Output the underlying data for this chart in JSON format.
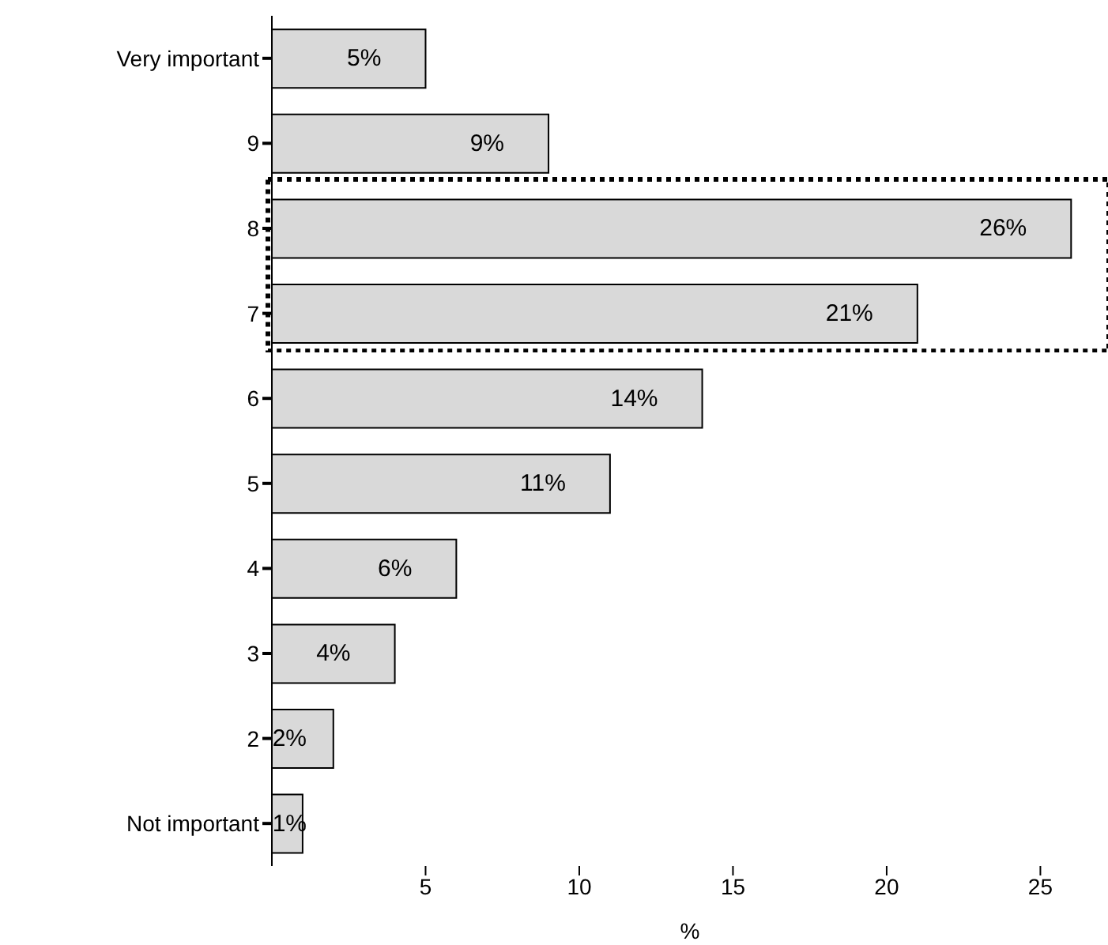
{
  "chart_data": {
    "type": "bar",
    "orientation": "horizontal",
    "xlabel": "%",
    "categories": [
      "Very important",
      "9",
      "8",
      "7",
      "6",
      "5",
      "4",
      "3",
      "2",
      "Not important"
    ],
    "values": [
      5,
      9,
      26,
      21,
      14,
      11,
      6,
      4,
      2,
      1
    ],
    "value_labels": [
      "5%",
      "9%",
      "26%",
      "21%",
      "14%",
      "11%",
      "6%",
      "4%",
      "2%",
      "1%"
    ],
    "color": "#d9d9d9",
    "xlim": [
      0,
      27.2
    ],
    "xticks": [
      5,
      10,
      15,
      20,
      25
    ]
  }
}
